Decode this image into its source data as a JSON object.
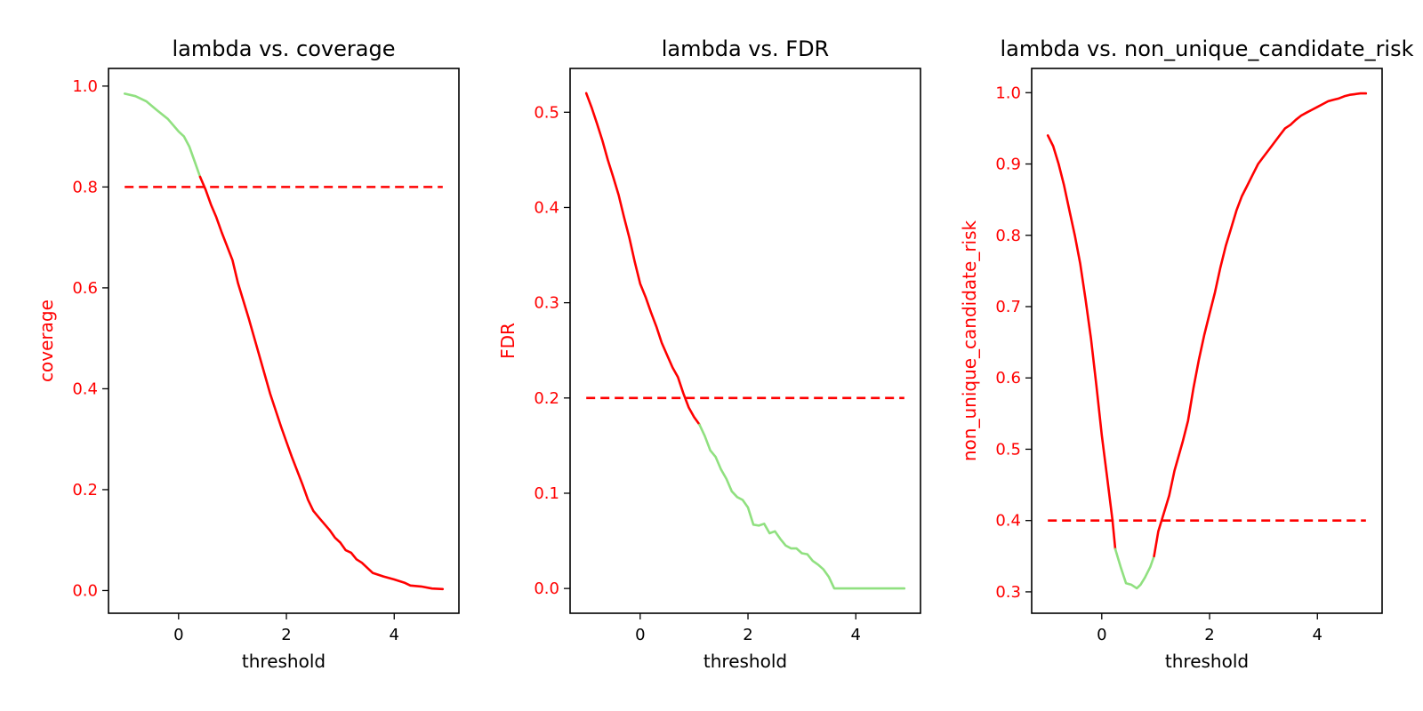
{
  "colors": {
    "risk_color": "#ff0000",
    "safe_color": "#90e080",
    "axis_color": "#000000"
  },
  "chart_data": [
    {
      "type": "line",
      "title": "lambda vs. coverage",
      "xlabel": "threshold",
      "ylabel": "coverage",
      "xlim": [
        -1.3,
        5.2
      ],
      "ylim": [
        -0.045,
        1.035
      ],
      "xticks": [
        {
          "v": 0,
          "label": "0"
        },
        {
          "v": 2,
          "label": "2"
        },
        {
          "v": 4,
          "label": "4"
        }
      ],
      "yticks": [
        {
          "v": 0.0,
          "label": "0.0"
        },
        {
          "v": 0.2,
          "label": "0.2"
        },
        {
          "v": 0.4,
          "label": "0.4"
        },
        {
          "v": 0.6,
          "label": "0.6"
        },
        {
          "v": 0.8,
          "label": "0.8"
        },
        {
          "v": 1.0,
          "label": "1.0"
        }
      ],
      "target": 0.8,
      "target_range": [
        -1.0,
        4.9
      ],
      "series": [
        {
          "status": "safe",
          "x": [
            -1.0,
            -0.8,
            -0.6,
            -0.4,
            -0.2,
            0.0,
            0.1,
            0.2,
            0.3,
            0.4
          ],
          "y": [
            0.985,
            0.98,
            0.97,
            0.952,
            0.935,
            0.91,
            0.9,
            0.88,
            0.85,
            0.82
          ]
        },
        {
          "status": "risk",
          "x": [
            0.4,
            0.5,
            0.6,
            0.7,
            0.8,
            1.0,
            1.1,
            1.3,
            1.5,
            1.7,
            1.9,
            2.0,
            2.1,
            2.3,
            2.4,
            2.5,
            2.6,
            2.8,
            2.9,
            3.0,
            3.1,
            3.2,
            3.3,
            3.4,
            3.6,
            3.8,
            4.0,
            4.2,
            4.3,
            4.5,
            4.7,
            4.9
          ],
          "y": [
            0.82,
            0.795,
            0.765,
            0.74,
            0.71,
            0.655,
            0.61,
            0.54,
            0.465,
            0.39,
            0.325,
            0.295,
            0.265,
            0.21,
            0.18,
            0.158,
            0.145,
            0.12,
            0.105,
            0.095,
            0.08,
            0.075,
            0.062,
            0.055,
            0.035,
            0.028,
            0.022,
            0.015,
            0.01,
            0.008,
            0.004,
            0.003
          ]
        }
      ]
    },
    {
      "type": "line",
      "title": "lambda vs. FDR",
      "xlabel": "threshold",
      "ylabel": "FDR",
      "xlim": [
        -1.3,
        5.2
      ],
      "ylim": [
        -0.026,
        0.546
      ],
      "xticks": [
        {
          "v": 0,
          "label": "0"
        },
        {
          "v": 2,
          "label": "2"
        },
        {
          "v": 4,
          "label": "4"
        }
      ],
      "yticks": [
        {
          "v": 0.0,
          "label": "0.0"
        },
        {
          "v": 0.1,
          "label": "0.1"
        },
        {
          "v": 0.2,
          "label": "0.2"
        },
        {
          "v": 0.3,
          "label": "0.3"
        },
        {
          "v": 0.4,
          "label": "0.4"
        },
        {
          "v": 0.5,
          "label": "0.5"
        }
      ],
      "target": 0.2,
      "target_range": [
        -1.0,
        4.9
      ],
      "series": [
        {
          "status": "risk",
          "x": [
            -1.0,
            -0.9,
            -0.8,
            -0.7,
            -0.6,
            -0.5,
            -0.4,
            -0.3,
            -0.2,
            -0.1,
            0.0,
            0.1,
            0.2,
            0.3,
            0.4,
            0.5,
            0.6,
            0.7,
            0.8,
            0.9,
            1.0,
            1.1
          ],
          "y": [
            0.52,
            0.505,
            0.488,
            0.47,
            0.45,
            0.432,
            0.413,
            0.39,
            0.368,
            0.343,
            0.32,
            0.306,
            0.29,
            0.275,
            0.258,
            0.245,
            0.232,
            0.222,
            0.205,
            0.19,
            0.18,
            0.172
          ]
        },
        {
          "status": "safe",
          "x": [
            1.1,
            1.2,
            1.3,
            1.4,
            1.5,
            1.6,
            1.7,
            1.8,
            1.9,
            2.0,
            2.1,
            2.2,
            2.3,
            2.4,
            2.5,
            2.6,
            2.7,
            2.8,
            2.9,
            3.0,
            3.1,
            3.2,
            3.3,
            3.4,
            3.5,
            3.6,
            3.7,
            3.8,
            4.0,
            4.2,
            4.4,
            4.6,
            4.9
          ],
          "y": [
            0.172,
            0.16,
            0.145,
            0.138,
            0.125,
            0.115,
            0.102,
            0.096,
            0.093,
            0.085,
            0.067,
            0.066,
            0.068,
            0.058,
            0.06,
            0.052,
            0.045,
            0.042,
            0.042,
            0.037,
            0.036,
            0.029,
            0.025,
            0.02,
            0.012,
            0.0,
            0.0,
            0.0,
            0.0,
            0.0,
            0.0,
            0.0,
            0.0
          ]
        }
      ]
    },
    {
      "type": "line",
      "title": "lambda vs. non_unique_candidate_risk",
      "xlabel": "threshold",
      "ylabel": "non_unique_candidate_risk",
      "xlim": [
        -1.3,
        5.2
      ],
      "ylim": [
        0.27,
        1.034
      ],
      "xticks": [
        {
          "v": 0,
          "label": "0"
        },
        {
          "v": 2,
          "label": "2"
        },
        {
          "v": 4,
          "label": "4"
        }
      ],
      "yticks": [
        {
          "v": 0.3,
          "label": "0.3"
        },
        {
          "v": 0.4,
          "label": "0.4"
        },
        {
          "v": 0.5,
          "label": "0.5"
        },
        {
          "v": 0.6,
          "label": "0.6"
        },
        {
          "v": 0.7,
          "label": "0.7"
        },
        {
          "v": 0.8,
          "label": "0.8"
        },
        {
          "v": 0.9,
          "label": "0.9"
        },
        {
          "v": 1.0,
          "label": "1.0"
        }
      ],
      "target": 0.4,
      "target_range": [
        -1.0,
        4.9
      ],
      "series": [
        {
          "status": "risk",
          "x": [
            -1.0,
            -0.9,
            -0.8,
            -0.7,
            -0.6,
            -0.5,
            -0.4,
            -0.3,
            -0.2,
            -0.1,
            0.0,
            0.1,
            0.2,
            0.25
          ],
          "y": [
            0.94,
            0.925,
            0.9,
            0.87,
            0.835,
            0.8,
            0.76,
            0.71,
            0.655,
            0.59,
            0.52,
            0.46,
            0.4,
            0.36
          ]
        },
        {
          "status": "safe",
          "x": [
            0.25,
            0.35,
            0.45,
            0.55,
            0.65,
            0.72,
            0.8,
            0.9,
            0.97
          ],
          "y": [
            0.36,
            0.335,
            0.312,
            0.31,
            0.305,
            0.31,
            0.32,
            0.335,
            0.35
          ]
        },
        {
          "status": "risk",
          "x": [
            0.97,
            1.05,
            1.15,
            1.25,
            1.35,
            1.5,
            1.6,
            1.7,
            1.8,
            1.9,
            2.0,
            2.1,
            2.2,
            2.3,
            2.4,
            2.5,
            2.6,
            2.7,
            2.8,
            2.9,
            3.0,
            3.1,
            3.2,
            3.3,
            3.4,
            3.5,
            3.6,
            3.7,
            3.8,
            3.9,
            4.0,
            4.1,
            4.2,
            4.3,
            4.4,
            4.5,
            4.6,
            4.7,
            4.8,
            4.9
          ],
          "y": [
            0.35,
            0.385,
            0.41,
            0.435,
            0.47,
            0.51,
            0.54,
            0.585,
            0.625,
            0.66,
            0.69,
            0.72,
            0.755,
            0.785,
            0.81,
            0.835,
            0.855,
            0.87,
            0.885,
            0.9,
            0.91,
            0.92,
            0.93,
            0.94,
            0.95,
            0.955,
            0.962,
            0.968,
            0.972,
            0.976,
            0.98,
            0.984,
            0.988,
            0.99,
            0.992,
            0.995,
            0.997,
            0.998,
            0.999,
            0.999
          ]
        }
      ]
    }
  ]
}
